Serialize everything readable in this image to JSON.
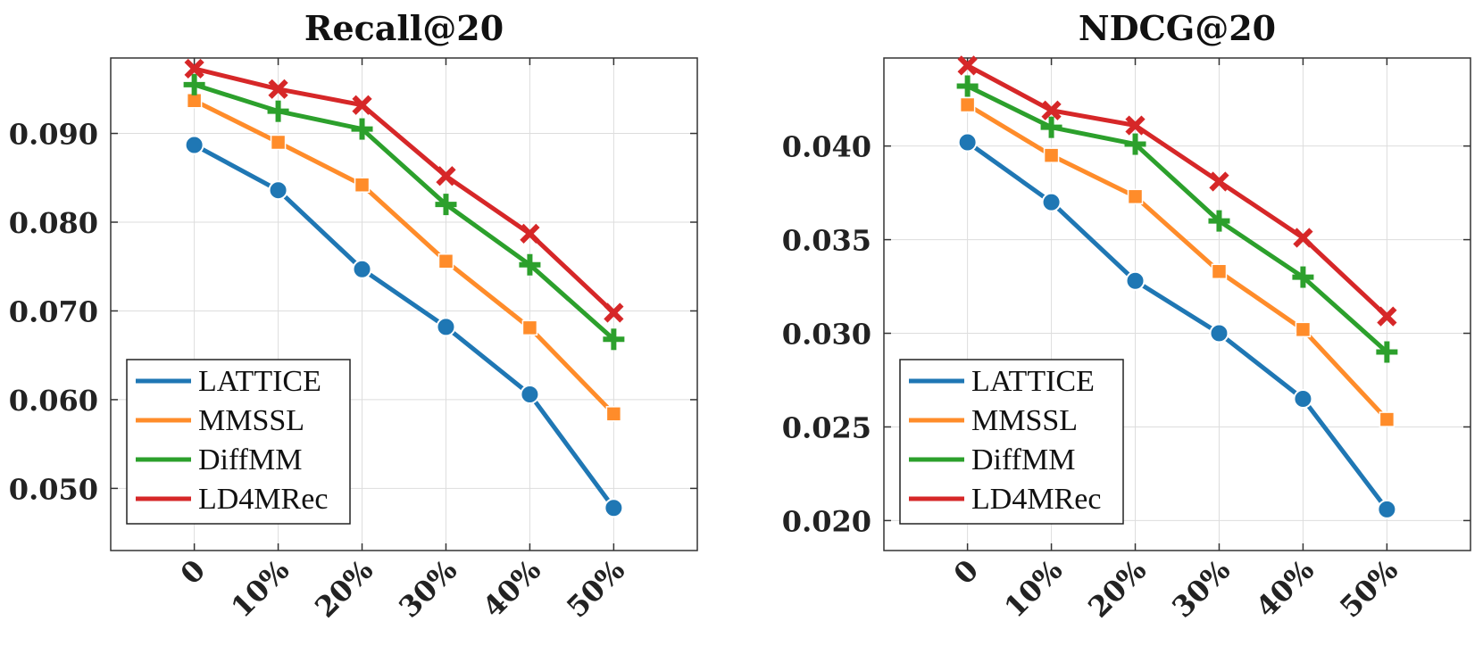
{
  "chart_data": [
    {
      "type": "line",
      "title": "Recall@20",
      "xlabel": "",
      "ylabel": "",
      "categories": [
        "0",
        "10%",
        "20%",
        "30%",
        "40%",
        "50%"
      ],
      "ylim": [
        0.043,
        0.0985
      ],
      "yticks": [
        0.05,
        0.06,
        0.07,
        0.08,
        0.09
      ],
      "ytick_labels": [
        "0.050",
        "0.060",
        "0.070",
        "0.080",
        "0.090"
      ],
      "grid": true,
      "legend_position": "bottom-left",
      "series": [
        {
          "name": "LATTICE",
          "color": "#1f77b4",
          "marker": "circle",
          "values": [
            0.0887,
            0.0836,
            0.0747,
            0.0682,
            0.0606,
            0.0478
          ]
        },
        {
          "name": "MMSSL",
          "color": "#ff8c2a",
          "marker": "square",
          "values": [
            0.0937,
            0.089,
            0.0842,
            0.0756,
            0.0681,
            0.0584
          ]
        },
        {
          "name": "DiffMM",
          "color": "#2ca02c",
          "marker": "plus",
          "values": [
            0.0955,
            0.0925,
            0.0905,
            0.082,
            0.0752,
            0.0668
          ]
        },
        {
          "name": "LD4MRec",
          "color": "#d62728",
          "marker": "x",
          "values": [
            0.0973,
            0.095,
            0.0932,
            0.0852,
            0.0787,
            0.0698
          ]
        }
      ]
    },
    {
      "type": "line",
      "title": "NDCG@20",
      "xlabel": "",
      "ylabel": "",
      "categories": [
        "0",
        "10%",
        "20%",
        "30%",
        "40%",
        "50%"
      ],
      "ylim": [
        0.0184,
        0.0447
      ],
      "yticks": [
        0.02,
        0.025,
        0.03,
        0.035,
        0.04
      ],
      "ytick_labels": [
        "0.020",
        "0.025",
        "0.030",
        "0.035",
        "0.040"
      ],
      "grid": true,
      "legend_position": "bottom-left",
      "series": [
        {
          "name": "LATTICE",
          "color": "#1f77b4",
          "marker": "circle",
          "values": [
            0.0402,
            0.037,
            0.0328,
            0.03,
            0.0265,
            0.0206
          ]
        },
        {
          "name": "MMSSL",
          "color": "#ff8c2a",
          "marker": "square",
          "values": [
            0.0422,
            0.0395,
            0.0373,
            0.0333,
            0.0302,
            0.0254
          ]
        },
        {
          "name": "DiffMM",
          "color": "#2ca02c",
          "marker": "plus",
          "values": [
            0.0432,
            0.041,
            0.0401,
            0.036,
            0.033,
            0.029
          ]
        },
        {
          "name": "LD4MRec",
          "color": "#d62728",
          "marker": "x",
          "values": [
            0.0443,
            0.0419,
            0.0411,
            0.0381,
            0.0351,
            0.0309
          ]
        }
      ]
    }
  ]
}
